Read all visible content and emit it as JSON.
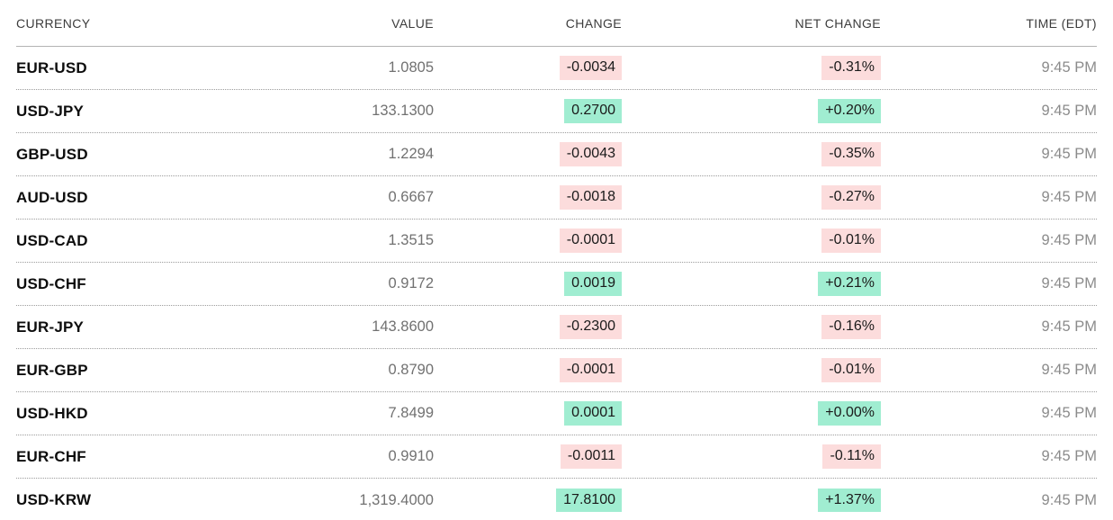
{
  "table": {
    "columns": [
      "CURRENCY",
      "VALUE",
      "CHANGE",
      "NET CHANGE",
      "TIME (EDT)"
    ],
    "rows": [
      {
        "currency": "EUR-USD",
        "value": "1.0805",
        "change": "-0.0034",
        "net_change": "-0.31%",
        "time": "9:45 PM",
        "direction": "down"
      },
      {
        "currency": "USD-JPY",
        "value": "133.1300",
        "change": "0.2700",
        "net_change": "+0.20%",
        "time": "9:45 PM",
        "direction": "up"
      },
      {
        "currency": "GBP-USD",
        "value": "1.2294",
        "change": "-0.0043",
        "net_change": "-0.35%",
        "time": "9:45 PM",
        "direction": "down"
      },
      {
        "currency": "AUD-USD",
        "value": "0.6667",
        "change": "-0.0018",
        "net_change": "-0.27%",
        "time": "9:45 PM",
        "direction": "down"
      },
      {
        "currency": "USD-CAD",
        "value": "1.3515",
        "change": "-0.0001",
        "net_change": "-0.01%",
        "time": "9:45 PM",
        "direction": "down"
      },
      {
        "currency": "USD-CHF",
        "value": "0.9172",
        "change": "0.0019",
        "net_change": "+0.21%",
        "time": "9:45 PM",
        "direction": "up"
      },
      {
        "currency": "EUR-JPY",
        "value": "143.8600",
        "change": "-0.2300",
        "net_change": "-0.16%",
        "time": "9:45 PM",
        "direction": "down"
      },
      {
        "currency": "EUR-GBP",
        "value": "0.8790",
        "change": "-0.0001",
        "net_change": "-0.01%",
        "time": "9:45 PM",
        "direction": "down"
      },
      {
        "currency": "USD-HKD",
        "value": "7.8499",
        "change": "0.0001",
        "net_change": "+0.00%",
        "time": "9:45 PM",
        "direction": "up"
      },
      {
        "currency": "EUR-CHF",
        "value": "0.9910",
        "change": "-0.0011",
        "net_change": "-0.11%",
        "time": "9:45 PM",
        "direction": "down"
      },
      {
        "currency": "USD-KRW",
        "value": "1,319.4000",
        "change": "17.8100",
        "net_change": "+1.37%",
        "time": "9:45 PM",
        "direction": "up"
      }
    ]
  },
  "colors": {
    "positive_bg": "#a0edd1",
    "negative_bg": "#fcdcdc",
    "header_text": "#3c3c3c",
    "value_text": "#717171",
    "time_text": "#8b8b8b"
  }
}
